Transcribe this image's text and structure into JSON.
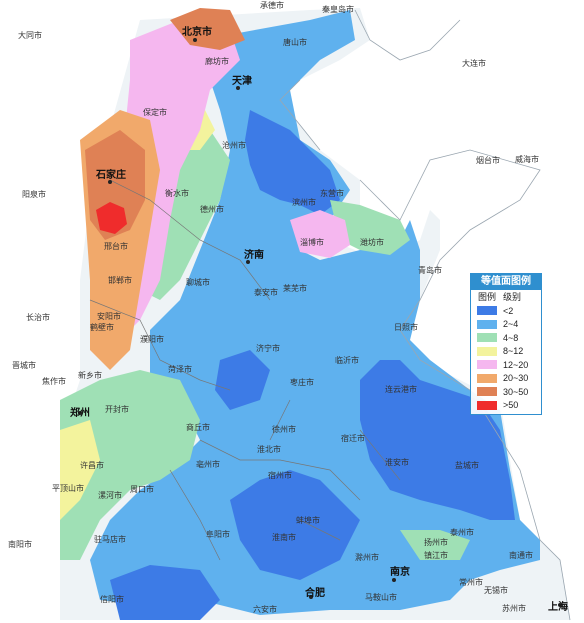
{
  "legend": {
    "title": "等值面图例",
    "header_left": "图例",
    "header_right": "级别",
    "items": [
      {
        "label": "<2",
        "color": "#3d7be6"
      },
      {
        "label": "2~4",
        "color": "#5fb1ee"
      },
      {
        "label": "4~8",
        "color": "#9fe0b5"
      },
      {
        "label": "8~12",
        "color": "#f3f39d"
      },
      {
        "label": "12~20",
        "color": "#f5b7ef"
      },
      {
        "label": "20~30",
        "color": "#f1a96b"
      },
      {
        "label": "30~50",
        "color": "#df8155"
      },
      {
        "label": ">50",
        "color": "#ef2c2c"
      }
    ]
  },
  "major_cities": [
    "北京市",
    "天津",
    "石家庄",
    "济南",
    "郑州",
    "南京",
    "合肥",
    "上海"
  ],
  "cities": [
    "大同市",
    "秦皇岛市",
    "唐山市",
    "廊坊市",
    "保定市",
    "沧州市",
    "衡水市",
    "德州市",
    "滨州市",
    "东营市",
    "淄博市",
    "潍坊市",
    "烟台市",
    "威海市",
    "青岛市",
    "日照市",
    "临沂市",
    "枣庄市",
    "济宁市",
    "泰安市",
    "莱芜市",
    "聊城市",
    "邢台市",
    "邯郸市",
    "安阳市",
    "鹤壁市",
    "新乡市",
    "焦作市",
    "濮阳市",
    "菏泽市",
    "开封市",
    "商丘市",
    "许昌市",
    "周口市",
    "平顶山市",
    "漯河市",
    "驻马店市",
    "阜阳市",
    "亳州市",
    "宿州市",
    "淮北市",
    "徐州市",
    "宿迁市",
    "连云港市",
    "淮安市",
    "盐城市",
    "蚌埠市",
    "淮南市",
    "扬州市",
    "泰州市",
    "镇江市",
    "南通市",
    "常州市",
    "无锡市",
    "苏州市",
    "马鞍山市",
    "滁州市",
    "六安市",
    "信阳市",
    "南阳市",
    "阳泉市",
    "晋城市",
    "长治市",
    "大连市",
    "承德市"
  ]
}
